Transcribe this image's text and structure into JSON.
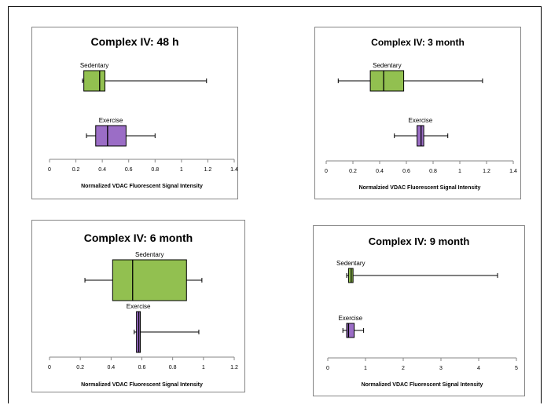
{
  "chart_data": [
    {
      "type": "box",
      "title": "Complex IV: 48 h",
      "xlabel": "Normalized VDAC Fluorescent Signal Intensity",
      "xlim": [
        0,
        1.4
      ],
      "xticks": [
        "0",
        "0.2",
        "0.4",
        "0.6",
        "0.8",
        "1",
        "1.2",
        "1.4"
      ],
      "series": [
        {
          "name": "Sedentary",
          "color": "#92C050",
          "min": 0.25,
          "q1": 0.26,
          "median": 0.38,
          "q3": 0.42,
          "max": 1.19
        },
        {
          "name": "Exercise",
          "color": "#9B6DC6",
          "min": 0.28,
          "q1": 0.35,
          "median": 0.44,
          "q3": 0.58,
          "max": 0.8
        }
      ]
    },
    {
      "type": "box",
      "title": "Complex IV: 3 month",
      "xlabel": "Normalzied VDAC Fluorescent Signal Intensity",
      "xlim": [
        0,
        1.4
      ],
      "xticks": [
        "0",
        "0.2",
        "0.4",
        "0.6",
        "0.8",
        "1",
        "1.2",
        "1.4"
      ],
      "series": [
        {
          "name": "Sedentary",
          "color": "#92C050",
          "min": 0.09,
          "q1": 0.33,
          "median": 0.43,
          "q3": 0.58,
          "max": 1.17
        },
        {
          "name": "Exercise",
          "color": "#9B6DC6",
          "min": 0.51,
          "q1": 0.68,
          "median": 0.71,
          "q3": 0.73,
          "max": 0.91
        }
      ]
    },
    {
      "type": "box",
      "title": "Complex IV: 6 month",
      "xlabel": "Normalized VDAC Fluorescent Signal Intensity",
      "xlim": [
        0,
        1.2
      ],
      "xticks": [
        "0",
        "0.2",
        "0.4",
        "0.6",
        "0.8",
        "1",
        "1.2"
      ],
      "series": [
        {
          "name": "Sedentary",
          "color": "#92C050",
          "min": 0.23,
          "q1": 0.41,
          "median": 0.54,
          "q3": 0.89,
          "max": 0.99
        },
        {
          "name": "Exercise",
          "color": "#9B6DC6",
          "min": 0.55,
          "q1": 0.565,
          "median": 0.58,
          "q3": 0.59,
          "max": 0.97
        }
      ]
    },
    {
      "type": "box",
      "title": "Complex IV: 9 month",
      "xlabel": "Normalized VDAC Fluorescent Signal Intensity",
      "xlim": [
        0,
        5
      ],
      "xticks": [
        "0",
        "1",
        "2",
        "3",
        "4",
        "5"
      ],
      "series": [
        {
          "name": "Sedentary",
          "color": "#92C050",
          "min": 0.5,
          "q1": 0.55,
          "median": 0.62,
          "q3": 0.67,
          "max": 4.5
        },
        {
          "name": "Exercise",
          "color": "#9B6DC6",
          "min": 0.4,
          "q1": 0.5,
          "median": 0.55,
          "q3": 0.7,
          "max": 0.95
        }
      ]
    }
  ]
}
